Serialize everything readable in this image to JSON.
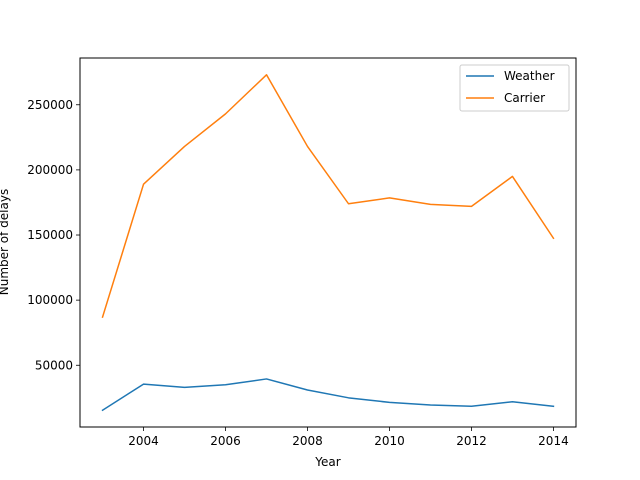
{
  "chart_data": {
    "type": "line",
    "title": "",
    "xlabel": "Year",
    "ylabel": "Number of delays",
    "x": [
      2003,
      2004,
      2005,
      2006,
      2007,
      2008,
      2009,
      2010,
      2011,
      2012,
      2013,
      2014
    ],
    "series": [
      {
        "name": "Weather",
        "color": "#1f77b4",
        "values": [
          15500,
          35500,
          33000,
          35000,
          39500,
          31000,
          25000,
          21500,
          19500,
          18500,
          22000,
          18500
        ]
      },
      {
        "name": "Carrier",
        "color": "#ff7f0e",
        "values": [
          87000,
          189000,
          218000,
          243000,
          273000,
          218000,
          174000,
          178500,
          173500,
          172000,
          195000,
          147500
        ]
      }
    ],
    "xticks": [
      2004,
      2006,
      2008,
      2010,
      2012,
      2014
    ],
    "yticks": [
      50000,
      100000,
      150000,
      200000,
      250000
    ],
    "xlim": [
      2002.45,
      2014.55
    ],
    "ylim": [
      2600,
      285900
    ],
    "grid": false,
    "legend_position": "top-right"
  }
}
